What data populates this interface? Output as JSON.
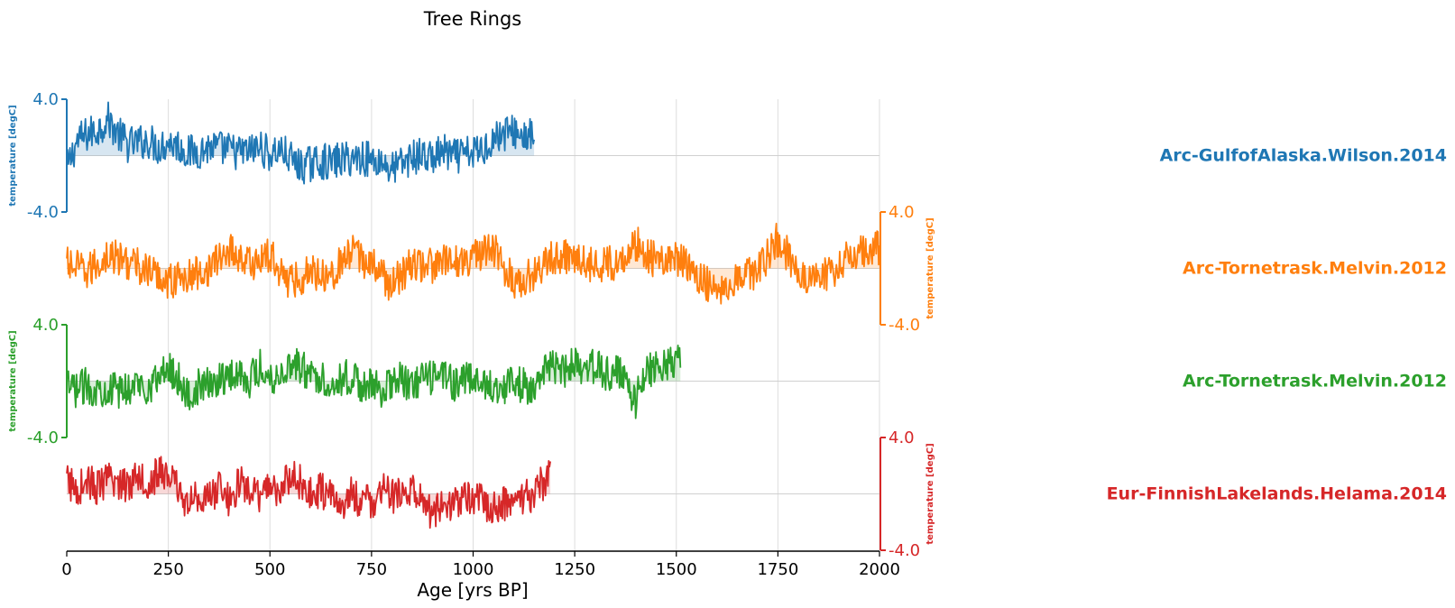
{
  "chart_data": {
    "type": "line",
    "title": "Tree Rings",
    "xlabel": "Age [yrs BP]",
    "xlim": [
      0,
      2000
    ],
    "xticks": [
      0,
      250,
      500,
      750,
      1000,
      1250,
      1500,
      1750,
      2000
    ],
    "xtick_labels": [
      "0",
      "250",
      "500",
      "750",
      "1000",
      "1250",
      "1500",
      "1750",
      "2000"
    ],
    "grid": true,
    "series": [
      {
        "name": "Arc-GulfofAlaska.Wilson.2014",
        "color": "#1f77b4",
        "ylabel": "temperature [degC]",
        "ylim": [
          -4.0,
          4.0
        ],
        "ytick_labels": [
          "4.0",
          "-4.0"
        ],
        "axis_side": "left",
        "x_range": [
          0,
          1150
        ],
        "x": [
          0,
          25,
          50,
          75,
          100,
          125,
          150,
          175,
          200,
          225,
          250,
          275,
          300,
          325,
          350,
          375,
          400,
          425,
          450,
          475,
          500,
          525,
          550,
          575,
          600,
          625,
          650,
          675,
          700,
          725,
          750,
          775,
          800,
          825,
          850,
          875,
          900,
          925,
          950,
          975,
          1000,
          1025,
          1050,
          1075,
          1100,
          1125,
          1150
        ],
        "values": [
          -1.0,
          1.0,
          1.5,
          1.8,
          2.6,
          1.6,
          0.8,
          0.9,
          1.1,
          0.6,
          1.0,
          0.7,
          0.2,
          0.3,
          0.6,
          0.5,
          0.4,
          0.2,
          0.3,
          0.6,
          0.1,
          0.4,
          -0.2,
          -0.8,
          -0.6,
          -0.4,
          -0.5,
          -0.3,
          -0.2,
          -0.1,
          -0.3,
          -0.4,
          -1.0,
          -0.6,
          -0.1,
          0.0,
          -0.2,
          0.3,
          -0.1,
          0.0,
          0.2,
          0.5,
          1.2,
          1.6,
          1.7,
          1.4,
          1.3
        ]
      },
      {
        "name": "Arc-Tornetrask.Melvin.2012",
        "color": "#ff7f0e",
        "ylabel": "temperature [degC]",
        "ylim": [
          -4.0,
          4.0
        ],
        "ytick_labels": [
          "4.0",
          "-4.0"
        ],
        "axis_side": "right",
        "x_range": [
          0,
          2000
        ],
        "x": [
          0,
          50,
          100,
          150,
          200,
          250,
          300,
          350,
          400,
          450,
          500,
          550,
          600,
          650,
          700,
          750,
          800,
          850,
          900,
          950,
          1000,
          1050,
          1100,
          1150,
          1200,
          1250,
          1300,
          1350,
          1400,
          1450,
          1500,
          1550,
          1600,
          1650,
          1700,
          1750,
          1800,
          1850,
          1900,
          1950,
          2000
        ],
        "values": [
          0.3,
          -0.3,
          0.9,
          0.5,
          -0.2,
          -0.9,
          -0.6,
          0.0,
          1.4,
          0.3,
          0.9,
          -1.0,
          -0.2,
          -0.4,
          1.1,
          0.3,
          -1.2,
          0.3,
          0.2,
          0.5,
          0.8,
          1.3,
          -1.0,
          -0.3,
          0.8,
          1.0,
          0.1,
          0.4,
          1.8,
          0.5,
          0.7,
          -0.4,
          -1.6,
          -0.5,
          -0.2,
          2.2,
          -0.4,
          -0.7,
          0.1,
          1.4,
          1.4
        ]
      },
      {
        "name": "Arc-Tornetrask.Melvin.2012",
        "color": "#2ca02c",
        "ylabel": "temperature [degC]",
        "ylim": [
          -4.0,
          4.0
        ],
        "ytick_labels": [
          "4.0",
          "-4.0"
        ],
        "axis_side": "left",
        "x_range": [
          0,
          1510
        ],
        "x": [
          0,
          25,
          50,
          75,
          100,
          125,
          150,
          175,
          200,
          225,
          250,
          275,
          300,
          325,
          350,
          375,
          400,
          425,
          450,
          475,
          500,
          525,
          550,
          575,
          600,
          625,
          650,
          675,
          700,
          725,
          750,
          775,
          800,
          825,
          850,
          875,
          900,
          925,
          950,
          975,
          1000,
          1025,
          1050,
          1075,
          1100,
          1125,
          1150,
          1175,
          1200,
          1225,
          1250,
          1275,
          1300,
          1325,
          1350,
          1375,
          1400,
          1425,
          1450,
          1475,
          1500
        ],
        "values": [
          -0.5,
          -0.6,
          -0.3,
          -0.7,
          -0.4,
          -0.8,
          -0.5,
          -0.2,
          -0.4,
          0.2,
          1.0,
          0.2,
          -1.2,
          -0.4,
          -0.3,
          0.2,
          0.4,
          0.6,
          0.1,
          1.0,
          0.3,
          0.4,
          1.3,
          1.0,
          0.4,
          0.3,
          -0.2,
          0.2,
          0.3,
          -0.3,
          -0.4,
          -0.6,
          -0.1,
          0.1,
          -0.5,
          0.2,
          0.1,
          0.7,
          -0.2,
          0.2,
          0.0,
          -0.3,
          -0.2,
          -0.4,
          -0.1,
          -0.3,
          -0.4,
          0.5,
          1.0,
          0.6,
          1.5,
          0.3,
          1.2,
          0.4,
          0.6,
          0.1,
          -1.5,
          0.9,
          0.9,
          1.2,
          1.4
        ]
      },
      {
        "name": "Eur-FinnishLakelands.Helama.2014",
        "color": "#d62728",
        "ylabel": "temperature [degC]",
        "ylim": [
          -4.0,
          4.0
        ],
        "ytick_labels": [
          "4.0",
          "-4.0"
        ],
        "axis_side": "right",
        "x_range": [
          0,
          1190
        ],
        "x": [
          0,
          25,
          50,
          75,
          100,
          125,
          150,
          175,
          200,
          225,
          250,
          275,
          300,
          325,
          350,
          375,
          400,
          425,
          450,
          475,
          500,
          525,
          550,
          575,
          600,
          625,
          650,
          675,
          700,
          725,
          750,
          775,
          800,
          825,
          850,
          875,
          900,
          925,
          950,
          975,
          1000,
          1025,
          1050,
          1075,
          1100,
          1125,
          1150,
          1175,
          1190
        ],
        "values": [
          0.9,
          0.3,
          1.0,
          0.4,
          0.9,
          0.8,
          0.6,
          1.6,
          0.7,
          1.5,
          1.3,
          0.4,
          -0.9,
          0.1,
          -0.5,
          0.5,
          -0.4,
          0.7,
          0.4,
          -0.5,
          0.8,
          0.1,
          1.2,
          0.8,
          -0.1,
          0.3,
          -0.2,
          -0.9,
          0.0,
          -0.5,
          -0.6,
          0.3,
          -0.3,
          0.2,
          0.3,
          -0.8,
          -1.3,
          -0.7,
          -0.8,
          -0.3,
          -0.1,
          -0.6,
          -1.1,
          -0.7,
          -0.5,
          -0.4,
          0.1,
          0.9,
          1.6
        ]
      }
    ]
  }
}
